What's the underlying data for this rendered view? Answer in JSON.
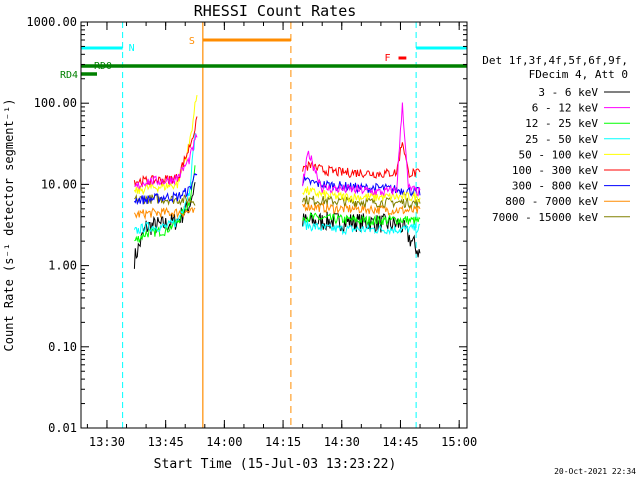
{
  "chart_data": {
    "type": "line",
    "title": "RHESSI Count Rates",
    "xlabel": "Start Time (15-Jul-03 13:23:22)",
    "ylabel": "Count Rate (s⁻¹ detector segment⁻¹)",
    "footer_date": "20-Oct-2021 22:34",
    "y_scale": "log",
    "ylim": [
      0.01,
      1000
    ],
    "xlim": [
      "13:23:22",
      "15:02:00"
    ],
    "x_ticks": [
      "13:30",
      "13:45",
      "14:00",
      "14:15",
      "14:30",
      "14:45",
      "15:00"
    ],
    "y_ticks": [
      "0.01",
      "0.10",
      "1.00",
      "10.00",
      "100.00",
      "1000.00"
    ],
    "grid": false,
    "legend": {
      "placement": "right",
      "header": [
        "Det 1f,3f,4f,5f,6f,9f,",
        "FDecim 4, Att 0"
      ]
    },
    "series": [
      {
        "name": "3 - 6 keV",
        "color": "#000000",
        "segments": [
          {
            "x": [
              "13:37:00",
              "13:40:00",
              "13:45:00",
              "13:48:00",
              "13:51:00",
              "13:52:30"
            ],
            "y": [
              1.2,
              3.0,
              3.2,
              3.6,
              5.5,
              10.0
            ]
          },
          {
            "x": [
              "14:20:00",
              "14:25:00",
              "14:30:00",
              "14:35:00",
              "14:40:00",
              "14:45:00",
              "14:50:00"
            ],
            "y": [
              3.5,
              3.5,
              3.5,
              3.4,
              3.3,
              3.2,
              1.4
            ]
          }
        ]
      },
      {
        "name": "6 - 12 keV",
        "color": "#ff00ff",
        "segments": [
          {
            "x": [
              "13:37:00",
              "13:40:00",
              "13:45:00",
              "13:48:00",
              "13:51:00",
              "13:53:00"
            ],
            "y": [
              9.0,
              11.0,
              11.0,
              12.0,
              20.0,
              40.0
            ]
          },
          {
            "x": [
              "14:20:00",
              "14:21:30",
              "14:25:00",
              "14:35:00",
              "14:40:00",
              "14:44:00",
              "14:45:30",
              "14:47:00",
              "14:50:00"
            ],
            "y": [
              10.0,
              25.0,
              9.0,
              8.5,
              8.0,
              8.5,
              100.0,
              9.0,
              8.0
            ]
          }
        ]
      },
      {
        "name": "12 - 25 keV",
        "color": "#00ff00",
        "segments": [
          {
            "x": [
              "13:37:00",
              "13:40:00",
              "13:45:00",
              "13:48:00",
              "13:51:00",
              "13:52:30"
            ],
            "y": [
              2.0,
              2.5,
              2.7,
              3.5,
              6.0,
              15.0
            ]
          },
          {
            "x": [
              "14:20:00",
              "14:25:00",
              "14:30:00",
              "14:35:00",
              "14:40:00",
              "14:45:00",
              "14:50:00"
            ],
            "y": [
              4.0,
              3.8,
              3.7,
              3.6,
              3.6,
              3.7,
              3.5
            ]
          }
        ]
      },
      {
        "name": "25 - 50 keV",
        "color": "#00ffff",
        "segments": [
          {
            "x": [
              "13:37:00",
              "13:40:00",
              "13:45:00",
              "13:48:00",
              "13:51:00",
              "13:52:30"
            ],
            "y": [
              2.6,
              3.0,
              3.0,
              3.5,
              8.0,
              40.0
            ]
          },
          {
            "x": [
              "14:20:00",
              "14:25:00",
              "14:30:00",
              "14:35:00",
              "14:40:00",
              "14:45:00",
              "14:50:00"
            ],
            "y": [
              3.2,
              2.9,
              2.8,
              2.8,
              2.8,
              2.8,
              2.9
            ]
          }
        ]
      },
      {
        "name": "50 - 100 keV",
        "color": "#ffff00",
        "segments": [
          {
            "x": [
              "13:37:00",
              "13:40:00",
              "13:45:00",
              "13:48:00",
              "13:51:00",
              "13:53:00"
            ],
            "y": [
              8.0,
              9.0,
              9.5,
              10.0,
              30.0,
              130.0
            ]
          },
          {
            "x": [
              "14:20:00",
              "14:25:00",
              "14:30:00",
              "14:35:00",
              "14:40:00",
              "14:45:00",
              "14:50:00"
            ],
            "y": [
              8.5,
              7.5,
              7.0,
              7.0,
              7.0,
              7.0,
              7.0
            ]
          }
        ]
      },
      {
        "name": "100 - 300 keV",
        "color": "#ff0000",
        "segments": [
          {
            "x": [
              "13:37:00",
              "13:40:00",
              "13:45:00",
              "13:48:00",
              "13:51:00",
              "13:53:00"
            ],
            "y": [
              11.0,
              11.0,
              11.5,
              12.0,
              28.0,
              60.0
            ]
          },
          {
            "x": [
              "14:20:00",
              "14:22:00",
              "14:25:00",
              "14:30:00",
              "14:35:00",
              "14:40:00",
              "14:44:00",
              "14:45:30",
              "14:47:00",
              "14:50:00"
            ],
            "y": [
              16.0,
              17.0,
              15.0,
              14.0,
              14.0,
              13.5,
              14.0,
              35.0,
              14.0,
              13.5
            ]
          }
        ]
      },
      {
        "name": "300 - 800 keV",
        "color": "#0000ff",
        "segments": [
          {
            "x": [
              "13:37:00",
              "13:40:00",
              "13:45:00",
              "13:48:00",
              "13:51:00",
              "13:53:00"
            ],
            "y": [
              6.5,
              6.5,
              7.0,
              7.0,
              8.5,
              15.0
            ]
          },
          {
            "x": [
              "14:20:00",
              "14:25:00",
              "14:30:00",
              "14:35:00",
              "14:40:00",
              "14:45:00",
              "14:50:00"
            ],
            "y": [
              11.0,
              10.0,
              9.5,
              9.0,
              9.0,
              8.5,
              8.0
            ]
          }
        ]
      },
      {
        "name": "800 - 7000 keV",
        "color": "#ff8c00",
        "segments": [
          {
            "x": [
              "13:37:00",
              "13:40:00",
              "13:45:00",
              "13:48:00",
              "13:51:00",
              "13:52:30"
            ],
            "y": [
              4.2,
              4.4,
              4.5,
              4.5,
              4.6,
              4.5
            ]
          },
          {
            "x": [
              "14:20:00",
              "14:25:00",
              "14:30:00",
              "14:35:00",
              "14:40:00",
              "14:45:00",
              "14:50:00"
            ],
            "y": [
              5.5,
              5.2,
              5.0,
              5.0,
              4.9,
              4.8,
              4.7
            ]
          }
        ]
      },
      {
        "name": "7000 - 15000 keV",
        "color": "#808000",
        "segments": [
          {
            "x": [
              "13:37:00",
              "13:40:00",
              "13:45:00",
              "13:48:00",
              "13:51:00",
              "13:52:30"
            ],
            "y": [
              6.5,
              6.6,
              6.6,
              6.5,
              6.4,
              6.3
            ]
          },
          {
            "x": [
              "14:20:00",
              "14:25:00",
              "14:30:00",
              "14:35:00",
              "14:40:00",
              "14:45:00",
              "14:50:00"
            ],
            "y": [
              6.5,
              6.3,
              6.2,
              6.1,
              6.0,
              6.0,
              5.9
            ]
          }
        ]
      }
    ],
    "annotations": {
      "night_label": "N",
      "saa_label": "S",
      "flare_label": "F",
      "rd0_label": "RD0",
      "rd4_label": "RD4",
      "night_intervals": [
        [
          "13:23:22",
          "13:34:00"
        ],
        [
          "14:49:00",
          "15:02:00"
        ]
      ],
      "saa_interval": [
        "13:54:30",
        "14:17:00"
      ],
      "flare_interval": [
        "14:44:30",
        "14:46:30"
      ],
      "rd0_interval": [
        "13:23:22",
        "15:02:00"
      ],
      "rd4_interval": [
        "13:23:22",
        "13:26:00"
      ],
      "cyan_lines": [
        "13:23:22",
        "13:34:00",
        "14:49:00",
        "15:02:00"
      ],
      "saa_lines": [
        "13:54:30",
        "14:17:00"
      ]
    },
    "colors": {
      "night": "#00ffff",
      "saa": "#ff8c00",
      "flare": "#ff0000",
      "rd": "#008000"
    }
  }
}
